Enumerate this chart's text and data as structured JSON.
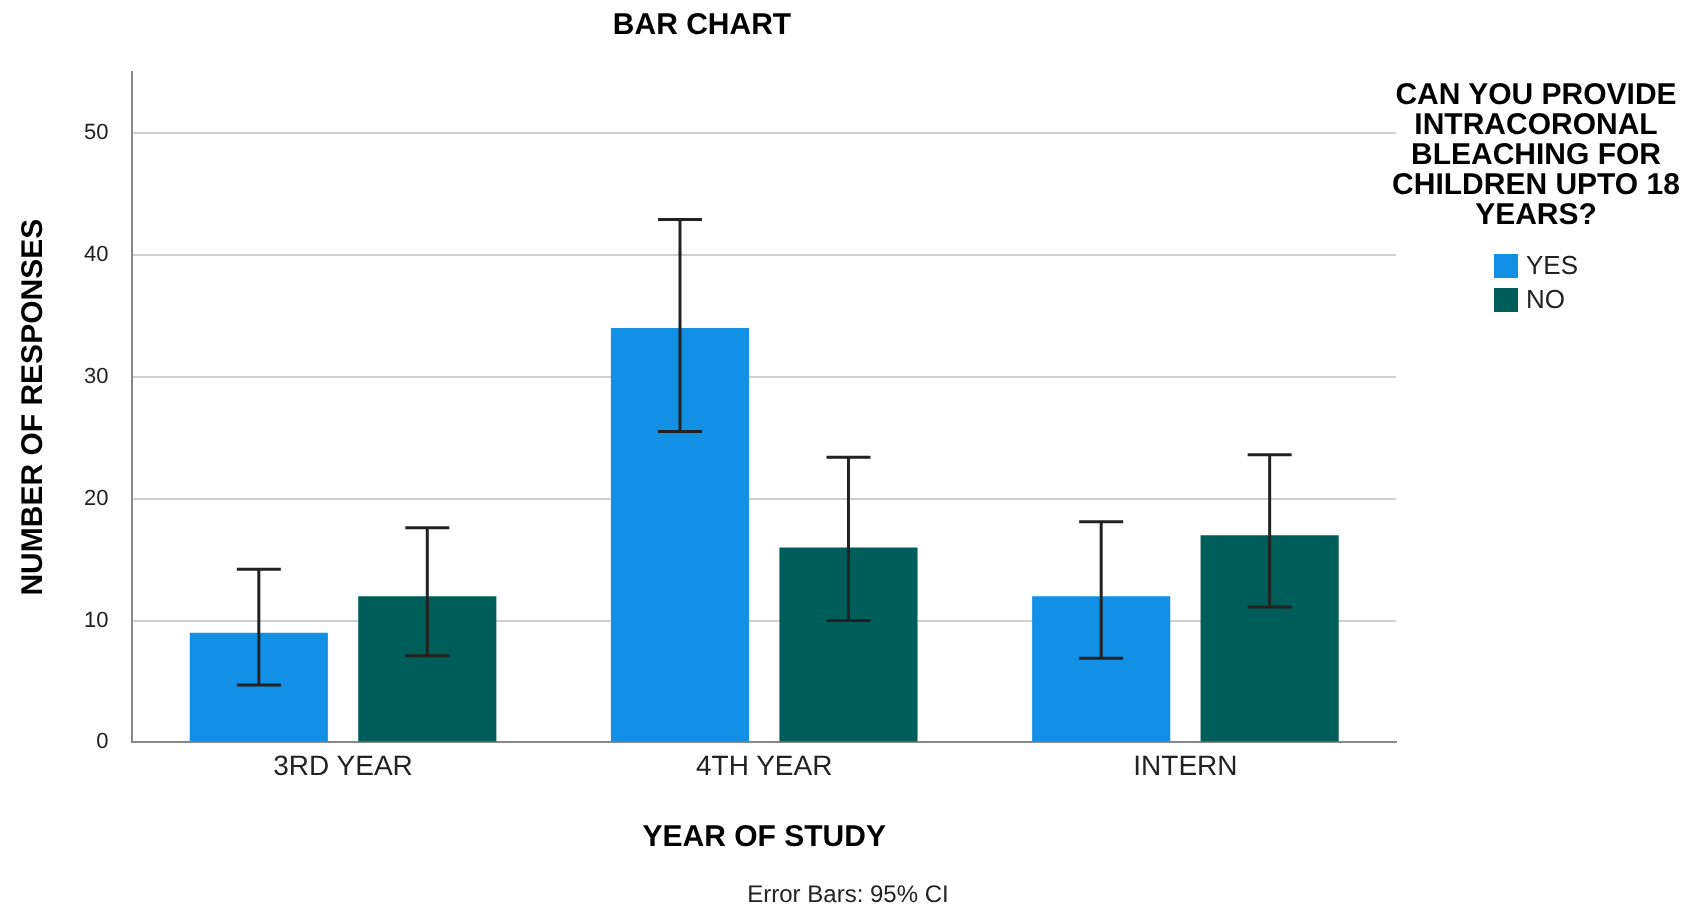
{
  "chart_data": {
    "type": "bar",
    "title": "BAR CHART",
    "xlabel": "YEAR OF STUDY",
    "ylabel": "NUMBER OF RESPONSES",
    "legend_title": "CAN YOU PROVIDE INTRACORONAL BLEACHING FOR CHILDREN UPTO 18 YEARS?",
    "categories": [
      "3RD YEAR",
      "4TH YEAR",
      "INTERN"
    ],
    "series": [
      {
        "name": "YES",
        "color": "#1290e6",
        "values": [
          9,
          34,
          12
        ],
        "errors": [
          [
            4.7,
            14.2
          ],
          [
            25.5,
            42.9
          ],
          [
            6.9,
            18.1
          ]
        ]
      },
      {
        "name": "NO",
        "color": "#005e5a",
        "values": [
          12,
          16,
          17
        ],
        "errors": [
          [
            7.1,
            17.6
          ],
          [
            10.0,
            23.4
          ],
          [
            11.1,
            23.6
          ]
        ]
      }
    ],
    "ylim": [
      0,
      55
    ],
    "yticks": [
      0,
      10,
      20,
      30,
      40,
      50
    ],
    "grid": "y",
    "legend": "right",
    "annotations": [
      "Error Bars: 95% CI"
    ]
  }
}
